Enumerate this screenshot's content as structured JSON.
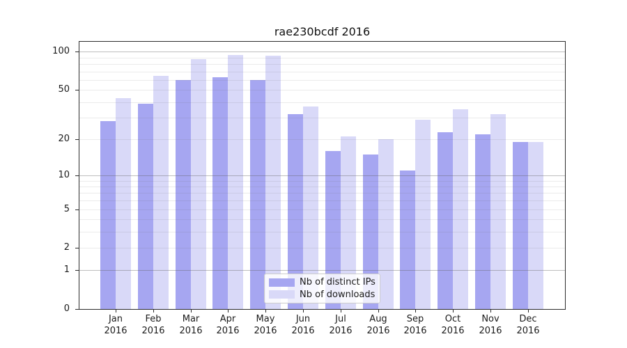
{
  "chart_data": {
    "type": "bar",
    "title": "rae230bcdf 2016",
    "categories": [
      "Jan",
      "Feb",
      "Mar",
      "Apr",
      "May",
      "Jun",
      "Jul",
      "Aug",
      "Sep",
      "Oct",
      "Nov",
      "Dec"
    ],
    "x_year_label": "2016",
    "series": [
      {
        "name": "Nb of distinct IPs",
        "color": "#a6a6f1",
        "values": [
          28,
          39,
          60,
          63,
          60,
          32,
          16,
          15,
          11,
          23,
          22,
          19
        ]
      },
      {
        "name": "Nb of downloads",
        "color": "#d9d9f8",
        "values": [
          43,
          65,
          87,
          95,
          93,
          37,
          21,
          20,
          29,
          35,
          32,
          19
        ]
      }
    ],
    "yscale": "symlog-log1p",
    "ylim": [
      0,
      120
    ],
    "yticks": [
      100,
      50,
      20,
      10,
      5,
      2,
      1,
      0
    ],
    "minor_gridlines": [
      2,
      3,
      4,
      5,
      6,
      7,
      8,
      9,
      20,
      30,
      40,
      50,
      60,
      70,
      80,
      90
    ],
    "major_gridlines": [
      1,
      10,
      100
    ],
    "grid": true,
    "legend_position": "lower center",
    "axis_color": "#2b2b2b",
    "text_color": "#1a1a1a"
  }
}
